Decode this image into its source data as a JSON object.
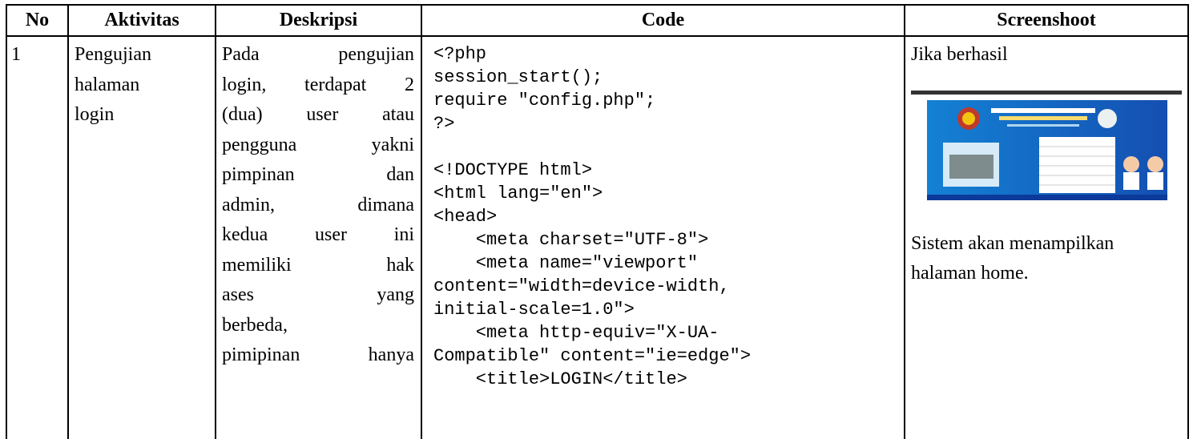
{
  "table": {
    "headers": [
      "No",
      "Aktivitas",
      "Deskripsi",
      "Code",
      "Screenshoot"
    ],
    "rows": [
      {
        "no": "1",
        "aktivitas": [
          "Pengujian",
          "halaman",
          "login"
        ],
        "deskripsi": [
          "Pada pengujian",
          "login, terdapat 2",
          "(dua) user atau",
          "pengguna yakni",
          "pimpinan dan",
          "admin, dimana",
          "kedua user ini",
          "memiliki hak",
          "ases yang",
          "berbeda,",
          "pimipinan hanya"
        ],
        "code_php": [
          "<?php",
          "session_start();",
          "require \"config.php\";",
          "?>"
        ],
        "code_html": [
          "<!DOCTYPE html>",
          "<html lang=\"en\">",
          "<head>",
          "    <meta charset=\"UTF-8\">",
          "    <meta name=\"viewport\"",
          "content=\"width=device-width,",
          "initial-scale=1.0\">",
          "    <meta http-equiv=\"X-UA-",
          "Compatible\" content=\"ie=edge\">",
          "    <title>LOGIN</title>"
        ],
        "screenshot_caption": "Jika berhasil",
        "screenshot_note": [
          "Sistem akan menampilkan",
          "halaman home."
        ]
      }
    ]
  }
}
